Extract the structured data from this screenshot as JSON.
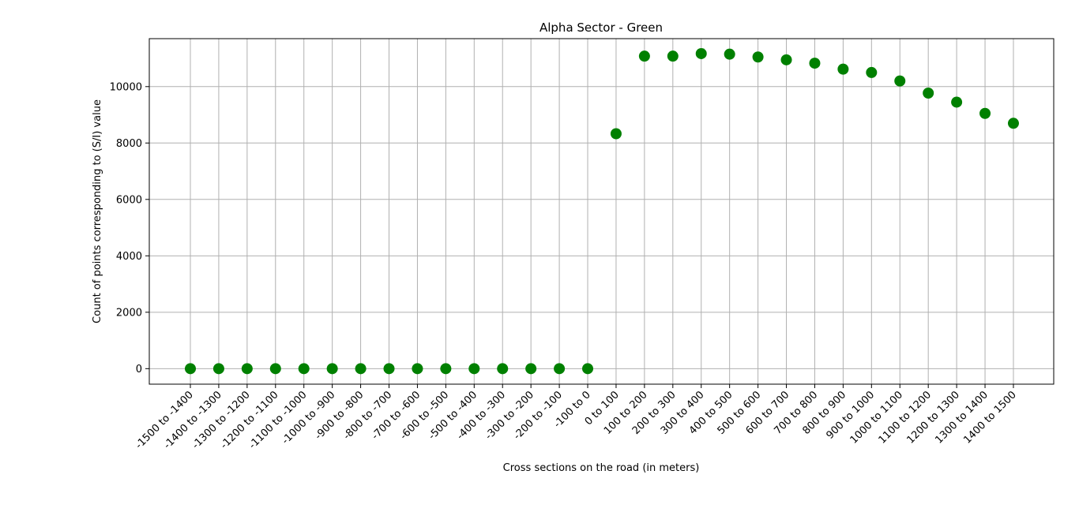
{
  "chart_data": {
    "type": "scatter",
    "title": "Alpha Sector - Green",
    "xlabel": "Cross sections on the road (in meters)",
    "ylabel": "Count of points corresponding to (S/I) value",
    "categories": [
      "-1500 to -1400",
      "-1400 to -1300",
      "-1300 to -1200",
      "-1200 to -1100",
      "-1100 to -1000",
      "-1000 to -900",
      "-900 to -800",
      "-800 to -700",
      "-700 to -600",
      "-600 to -500",
      "-500 to -400",
      "-400 to -300",
      "-300 to -200",
      "-200 to -100",
      "-100 to 0",
      "0 to 100",
      "100 to 200",
      "200 to 300",
      "300 to 400",
      "400 to 500",
      "500 to 600",
      "600 to 700",
      "700 to 800",
      "800 to 900",
      "900 to 1000",
      "1000 to 1100",
      "1100 to 1200",
      "1200 to 1300",
      "1300 to 1400",
      "1400 to 1500"
    ],
    "values": [
      0,
      0,
      0,
      0,
      0,
      0,
      0,
      0,
      0,
      0,
      0,
      0,
      0,
      0,
      0,
      8330,
      11080,
      11080,
      11170,
      11150,
      11050,
      10950,
      10830,
      10620,
      10500,
      10200,
      9770,
      9450,
      9050,
      8700
    ],
    "yticks": [
      0,
      2000,
      4000,
      6000,
      8000,
      10000
    ],
    "ylim": [
      -550,
      11700
    ],
    "grid": true,
    "marker_color": "#008000"
  }
}
